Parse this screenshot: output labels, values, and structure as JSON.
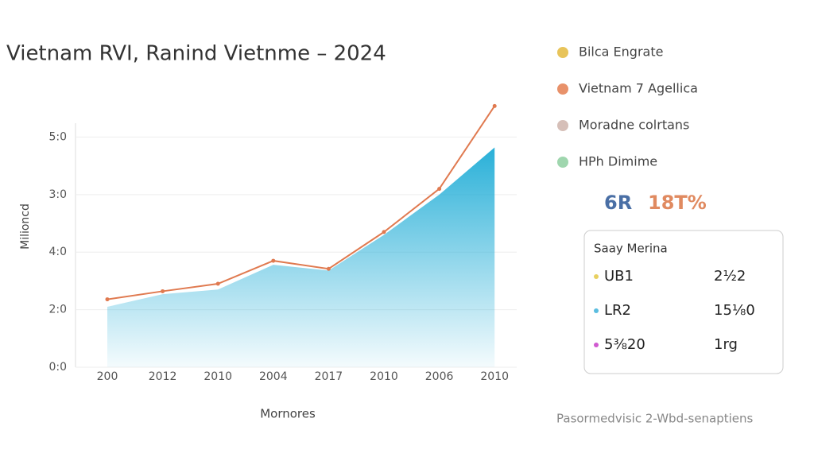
{
  "chart_data": {
    "type": "area-line",
    "title": "Vietnam RVI, Ranind Vietnme – 2024",
    "y_label": "Milioncd",
    "x_label": "Mornores",
    "categories": [
      "200",
      "2012",
      "2010",
      "2004",
      "2017",
      "2010",
      "2006",
      "2010"
    ],
    "series": [
      {
        "name": "Bilca Engrate",
        "color": "#29b0d8",
        "kind": "area",
        "values": [
          1.05,
          1.27,
          1.35,
          1.78,
          1.68,
          2.3,
          3.0,
          3.82
        ]
      },
      {
        "name": "Vietnam 7 Agellica",
        "color": "#e07a50",
        "kind": "line",
        "values": [
          1.18,
          1.32,
          1.45,
          1.85,
          1.71,
          2.35,
          3.1,
          4.54
        ]
      }
    ],
    "ylim": [
      0,
      4.6
    ],
    "yticks": [
      {
        "value": 0,
        "label": "0:0"
      },
      {
        "value": 1,
        "label": "2:0"
      },
      {
        "value": 2,
        "label": "4:0"
      },
      {
        "value": 3,
        "label": "3:0"
      },
      {
        "value": 4,
        "label": "5:0"
      }
    ],
    "grid": true
  },
  "legend": [
    {
      "name": "Bilca Engrate",
      "color": "#e8c45a"
    },
    {
      "name": "Vietnam 7 Agellica",
      "color": "#e8916a"
    },
    {
      "name": "Moradne colrtans",
      "color": "#d6bfb8"
    },
    {
      "name": "HPh Dimime",
      "color": "#9fd6ae"
    }
  ],
  "stats": [
    {
      "text": "6R",
      "color": "#4a6fa5"
    },
    {
      "text": "18T%",
      "color": "#e08a60"
    }
  ],
  "summary": {
    "title": "Saay Merina",
    "rows": [
      {
        "label": "UB1",
        "value": "2½2",
        "color": "#e8d060"
      },
      {
        "label": "LR2",
        "value": "15⅛0",
        "color": "#5bbde0"
      },
      {
        "label": "5⅜20",
        "value": "1rg",
        "color": "#d05ad0"
      }
    ]
  },
  "footer": "Pasormedvisic 2-Wbd-senaptiens"
}
